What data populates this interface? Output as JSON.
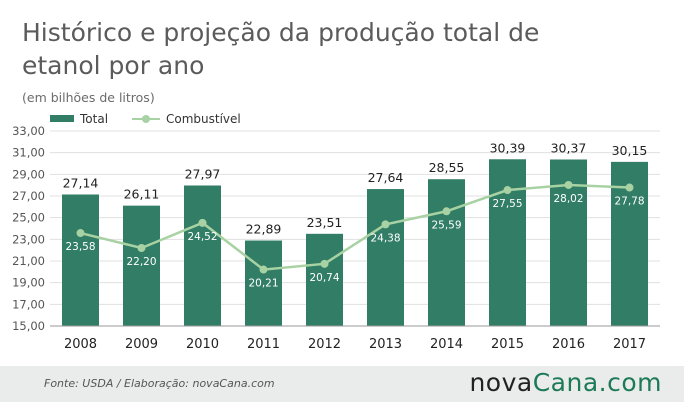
{
  "title": "Histórico e projeção da produção total de etanol por ano",
  "subtitle": "(em bilhões de litros)",
  "footer": {
    "source": "Fonte:  USDA / Elaboração:  novaCana.com",
    "brand_part1": "nova",
    "brand_part2": "Cana",
    "brand_part3": ".com"
  },
  "colors": {
    "bar": "#317d65",
    "line": "#a8d2a3",
    "grid": "#e0e0e0",
    "brand_accent": "#1d7a58"
  },
  "chart_data": {
    "type": "bar",
    "categories": [
      "2008",
      "2009",
      "2010",
      "2011",
      "2012",
      "2013",
      "2014",
      "2015",
      "2016",
      "2017"
    ],
    "series": [
      {
        "name": "Total",
        "type": "bar",
        "values": [
          27.14,
          26.11,
          27.97,
          22.89,
          23.51,
          27.64,
          28.55,
          30.39,
          30.37,
          30.15
        ],
        "labels": [
          "27,14",
          "26,11",
          "27,97",
          "22,89",
          "23,51",
          "27,64",
          "28,55",
          "30,39",
          "30,37",
          "30,15"
        ]
      },
      {
        "name": "Combustível",
        "type": "line",
        "values": [
          23.58,
          22.2,
          24.52,
          20.21,
          20.74,
          24.38,
          25.59,
          27.55,
          28.02,
          27.78
        ],
        "labels": [
          "23,58",
          "22,20",
          "24,52",
          "20,21",
          "20,74",
          "24,38",
          "25,59",
          "27,55",
          "28,02",
          "27,78"
        ]
      }
    ],
    "ylim": [
      15,
      33
    ],
    "yticks": [
      "15,00",
      "17,00",
      "19,00",
      "21,00",
      "23,00",
      "25,00",
      "27,00",
      "29,00",
      "31,00",
      "33,00"
    ],
    "ytick_values": [
      15,
      17,
      19,
      21,
      23,
      25,
      27,
      29,
      31,
      33
    ],
    "grid": true,
    "legend_position": "top-left"
  }
}
